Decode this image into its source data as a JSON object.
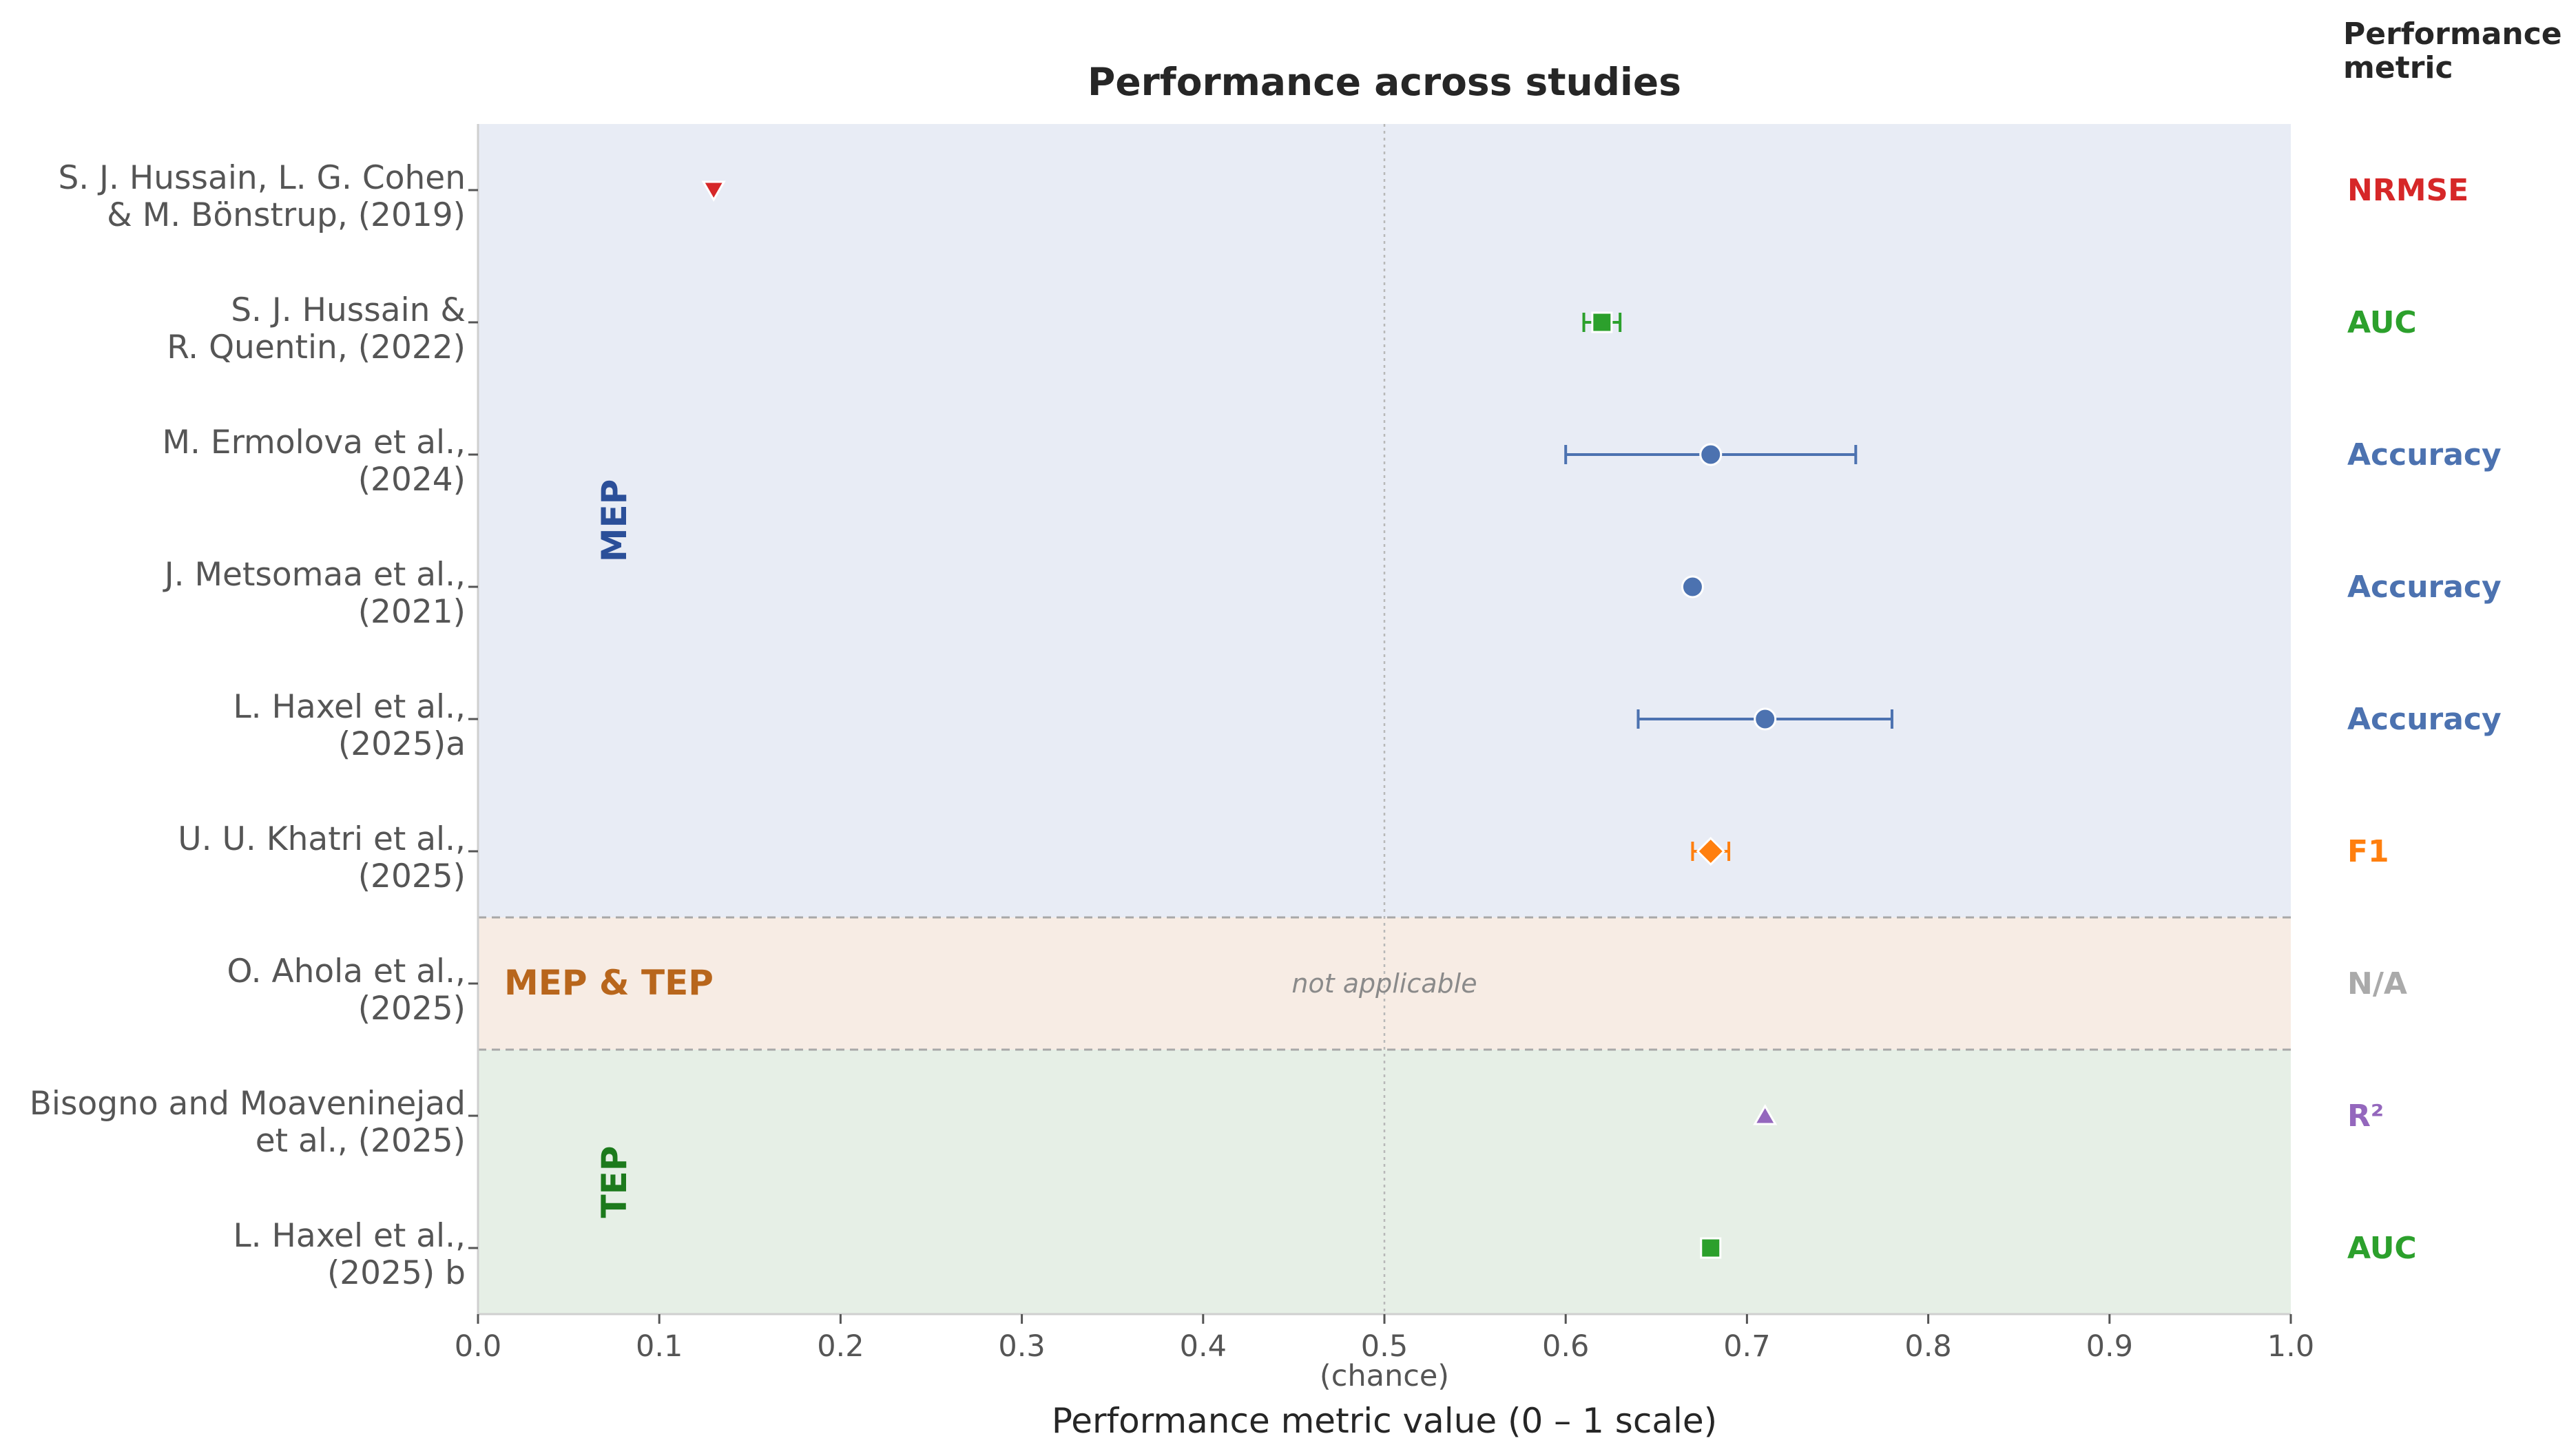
{
  "chart_data": {
    "type": "scatter",
    "title": "Performance across studies",
    "xlabel": "Performance metric value  (0 – 1 scale)",
    "x_ticks": [
      "0.0",
      "0.1",
      "0.2",
      "0.3",
      "0.4",
      "0.5",
      "0.6",
      "0.7",
      "0.8",
      "0.9",
      "1.0"
    ],
    "xlim": [
      0,
      1
    ],
    "chance_value": 0.5,
    "chance_label": "(chance)",
    "metric_header": [
      "Performance",
      "metric"
    ],
    "grid": false,
    "groups": [
      {
        "label": "MEP",
        "rows": [
          0,
          5
        ],
        "color": "#e8ecf5",
        "text_color": "#2b4f99"
      },
      {
        "label": "MEP & TEP",
        "rows": [
          6,
          6
        ],
        "color": "#f7ece4",
        "text_color": "#b8661c"
      },
      {
        "label": "TEP",
        "rows": [
          7,
          8
        ],
        "color": "#e6efe6",
        "text_color": "#1c7a1c"
      }
    ],
    "studies": [
      {
        "label_lines": [
          "S. J. Hussain, L. G. Cohen",
          "& M. Bönstrup, (2019)"
        ],
        "metric": "NRMSE",
        "value": 0.13,
        "err": null,
        "marker": "triangle-down",
        "color": "#d62728"
      },
      {
        "label_lines": [
          "S. J. Hussain &",
          "R. Quentin,  (2022)"
        ],
        "metric": "AUC",
        "value": 0.62,
        "err": [
          0.61,
          0.63
        ],
        "marker": "square",
        "color": "#2ca02c"
      },
      {
        "label_lines": [
          "M. Ermolova et al.,",
          "(2024)"
        ],
        "metric": "Accuracy",
        "value": 0.68,
        "err": [
          0.6,
          0.76
        ],
        "marker": "circle",
        "color": "#4c72b0"
      },
      {
        "label_lines": [
          "J. Metsomaa et al.,",
          "(2021)"
        ],
        "metric": "Accuracy",
        "value": 0.67,
        "err": null,
        "marker": "circle",
        "color": "#4c72b0"
      },
      {
        "label_lines": [
          "L. Haxel et al.,",
          "(2025)a"
        ],
        "metric": "Accuracy",
        "value": 0.71,
        "err": [
          0.64,
          0.78
        ],
        "marker": "circle",
        "color": "#4c72b0"
      },
      {
        "label_lines": [
          "U. U. Khatri et al.,",
          "(2025)"
        ],
        "metric": "F1",
        "value": 0.68,
        "err": [
          0.67,
          0.69
        ],
        "marker": "diamond",
        "color": "#ff7f0e"
      },
      {
        "label_lines": [
          "O. Ahola et al.,",
          "(2025)"
        ],
        "metric": "N/A",
        "value": null,
        "err": null,
        "marker": null,
        "color": "#aaaaaa",
        "annotation": "not applicable"
      },
      {
        "label_lines": [
          "Bisogno and Moaveninejad",
          "et al., (2025)"
        ],
        "metric": "R²",
        "value": 0.71,
        "err": null,
        "marker": "triangle-up",
        "color": "#9467bd"
      },
      {
        "label_lines": [
          "L. Haxel et al.,",
          "(2025) b"
        ],
        "metric": "AUC",
        "value": 0.68,
        "err": null,
        "marker": "square",
        "color": "#2ca02c"
      }
    ]
  }
}
